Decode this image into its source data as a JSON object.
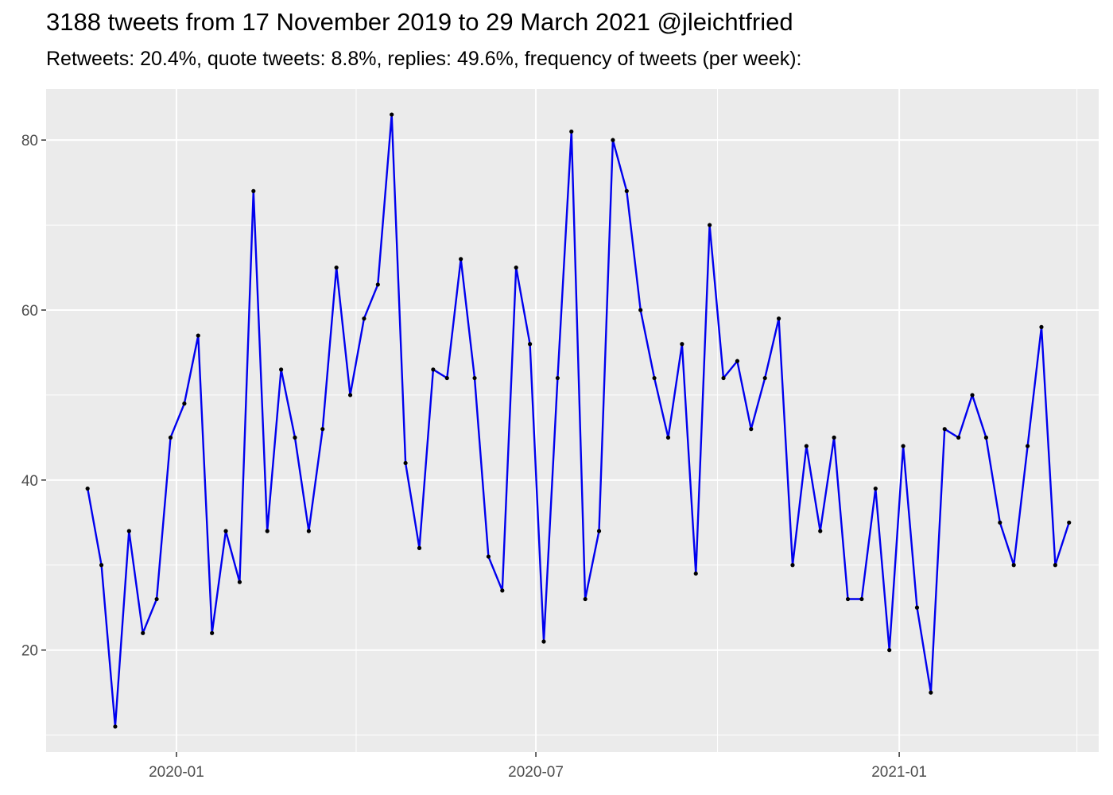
{
  "chart_data": {
    "type": "line",
    "title": "3188 tweets from 17 November 2019 to 29 March 2021 @jleichtfried",
    "subtitle": "Retweets: 20.4%, quote tweets: 8.8%, replies: 49.6%, frequency of tweets (per week):",
    "xlabel": "",
    "ylabel": "",
    "x_ticks": [
      {
        "date": "2020-01-01",
        "label": "2020-01"
      },
      {
        "date": "2020-07-01",
        "label": "2020-07"
      },
      {
        "date": "2021-01-01",
        "label": "2021-01"
      }
    ],
    "x_minor_ticks": [
      "2020-04-01",
      "2020-10-01",
      "2021-04-01"
    ],
    "y_ticks": [
      20,
      40,
      60,
      80
    ],
    "y_minor_ticks": [
      10,
      30,
      50,
      70
    ],
    "xlim": [
      "2019-10-27",
      "2021-04-12"
    ],
    "ylim": [
      8,
      86
    ],
    "grid": true,
    "colors": {
      "line": "#0000ee",
      "point": "#000000",
      "panel": "#ebebeb",
      "grid": "#ffffff"
    },
    "series": [
      {
        "x": [
          "2019-11-17",
          "2019-11-24",
          "2019-12-01",
          "2019-12-08",
          "2019-12-15",
          "2019-12-22",
          "2019-12-29",
          "2020-01-05",
          "2020-01-12",
          "2020-01-19",
          "2020-01-26",
          "2020-02-02",
          "2020-02-09",
          "2020-02-16",
          "2020-02-23",
          "2020-03-01",
          "2020-03-08",
          "2020-03-15",
          "2020-03-22",
          "2020-03-29",
          "2020-04-05",
          "2020-04-12",
          "2020-04-19",
          "2020-04-26",
          "2020-05-03",
          "2020-05-10",
          "2020-05-17",
          "2020-05-24",
          "2020-05-31",
          "2020-06-07",
          "2020-06-14",
          "2020-06-21",
          "2020-06-28",
          "2020-07-05",
          "2020-07-12",
          "2020-07-19",
          "2020-07-26",
          "2020-08-02",
          "2020-08-09",
          "2020-08-16",
          "2020-08-23",
          "2020-08-30",
          "2020-09-06",
          "2020-09-13",
          "2020-09-20",
          "2020-09-27",
          "2020-10-04",
          "2020-10-11",
          "2020-10-18",
          "2020-10-25",
          "2020-11-01",
          "2020-11-08",
          "2020-11-15",
          "2020-11-22",
          "2020-11-29",
          "2020-12-06",
          "2020-12-13",
          "2020-12-20",
          "2020-12-27",
          "2021-01-03",
          "2021-01-10",
          "2021-01-17",
          "2021-01-24",
          "2021-01-31",
          "2021-02-07",
          "2021-02-14",
          "2021-02-21",
          "2021-02-28",
          "2021-03-07",
          "2021-03-14",
          "2021-03-21",
          "2021-03-28"
        ],
        "values": [
          39,
          30,
          11,
          34,
          22,
          26,
          45,
          49,
          57,
          22,
          34,
          28,
          74,
          34,
          53,
          45,
          34,
          46,
          65,
          50,
          59,
          63,
          83,
          42,
          32,
          53,
          52,
          66,
          52,
          31,
          27,
          65,
          56,
          21,
          52,
          81,
          26,
          34,
          80,
          74,
          60,
          52,
          45,
          56,
          29,
          70,
          52,
          54,
          46,
          52,
          59,
          30,
          44,
          34,
          45,
          26,
          26,
          39,
          20,
          44,
          25,
          15,
          46,
          45,
          50,
          45,
          35,
          30,
          44,
          58,
          30,
          35
        ]
      }
    ]
  }
}
